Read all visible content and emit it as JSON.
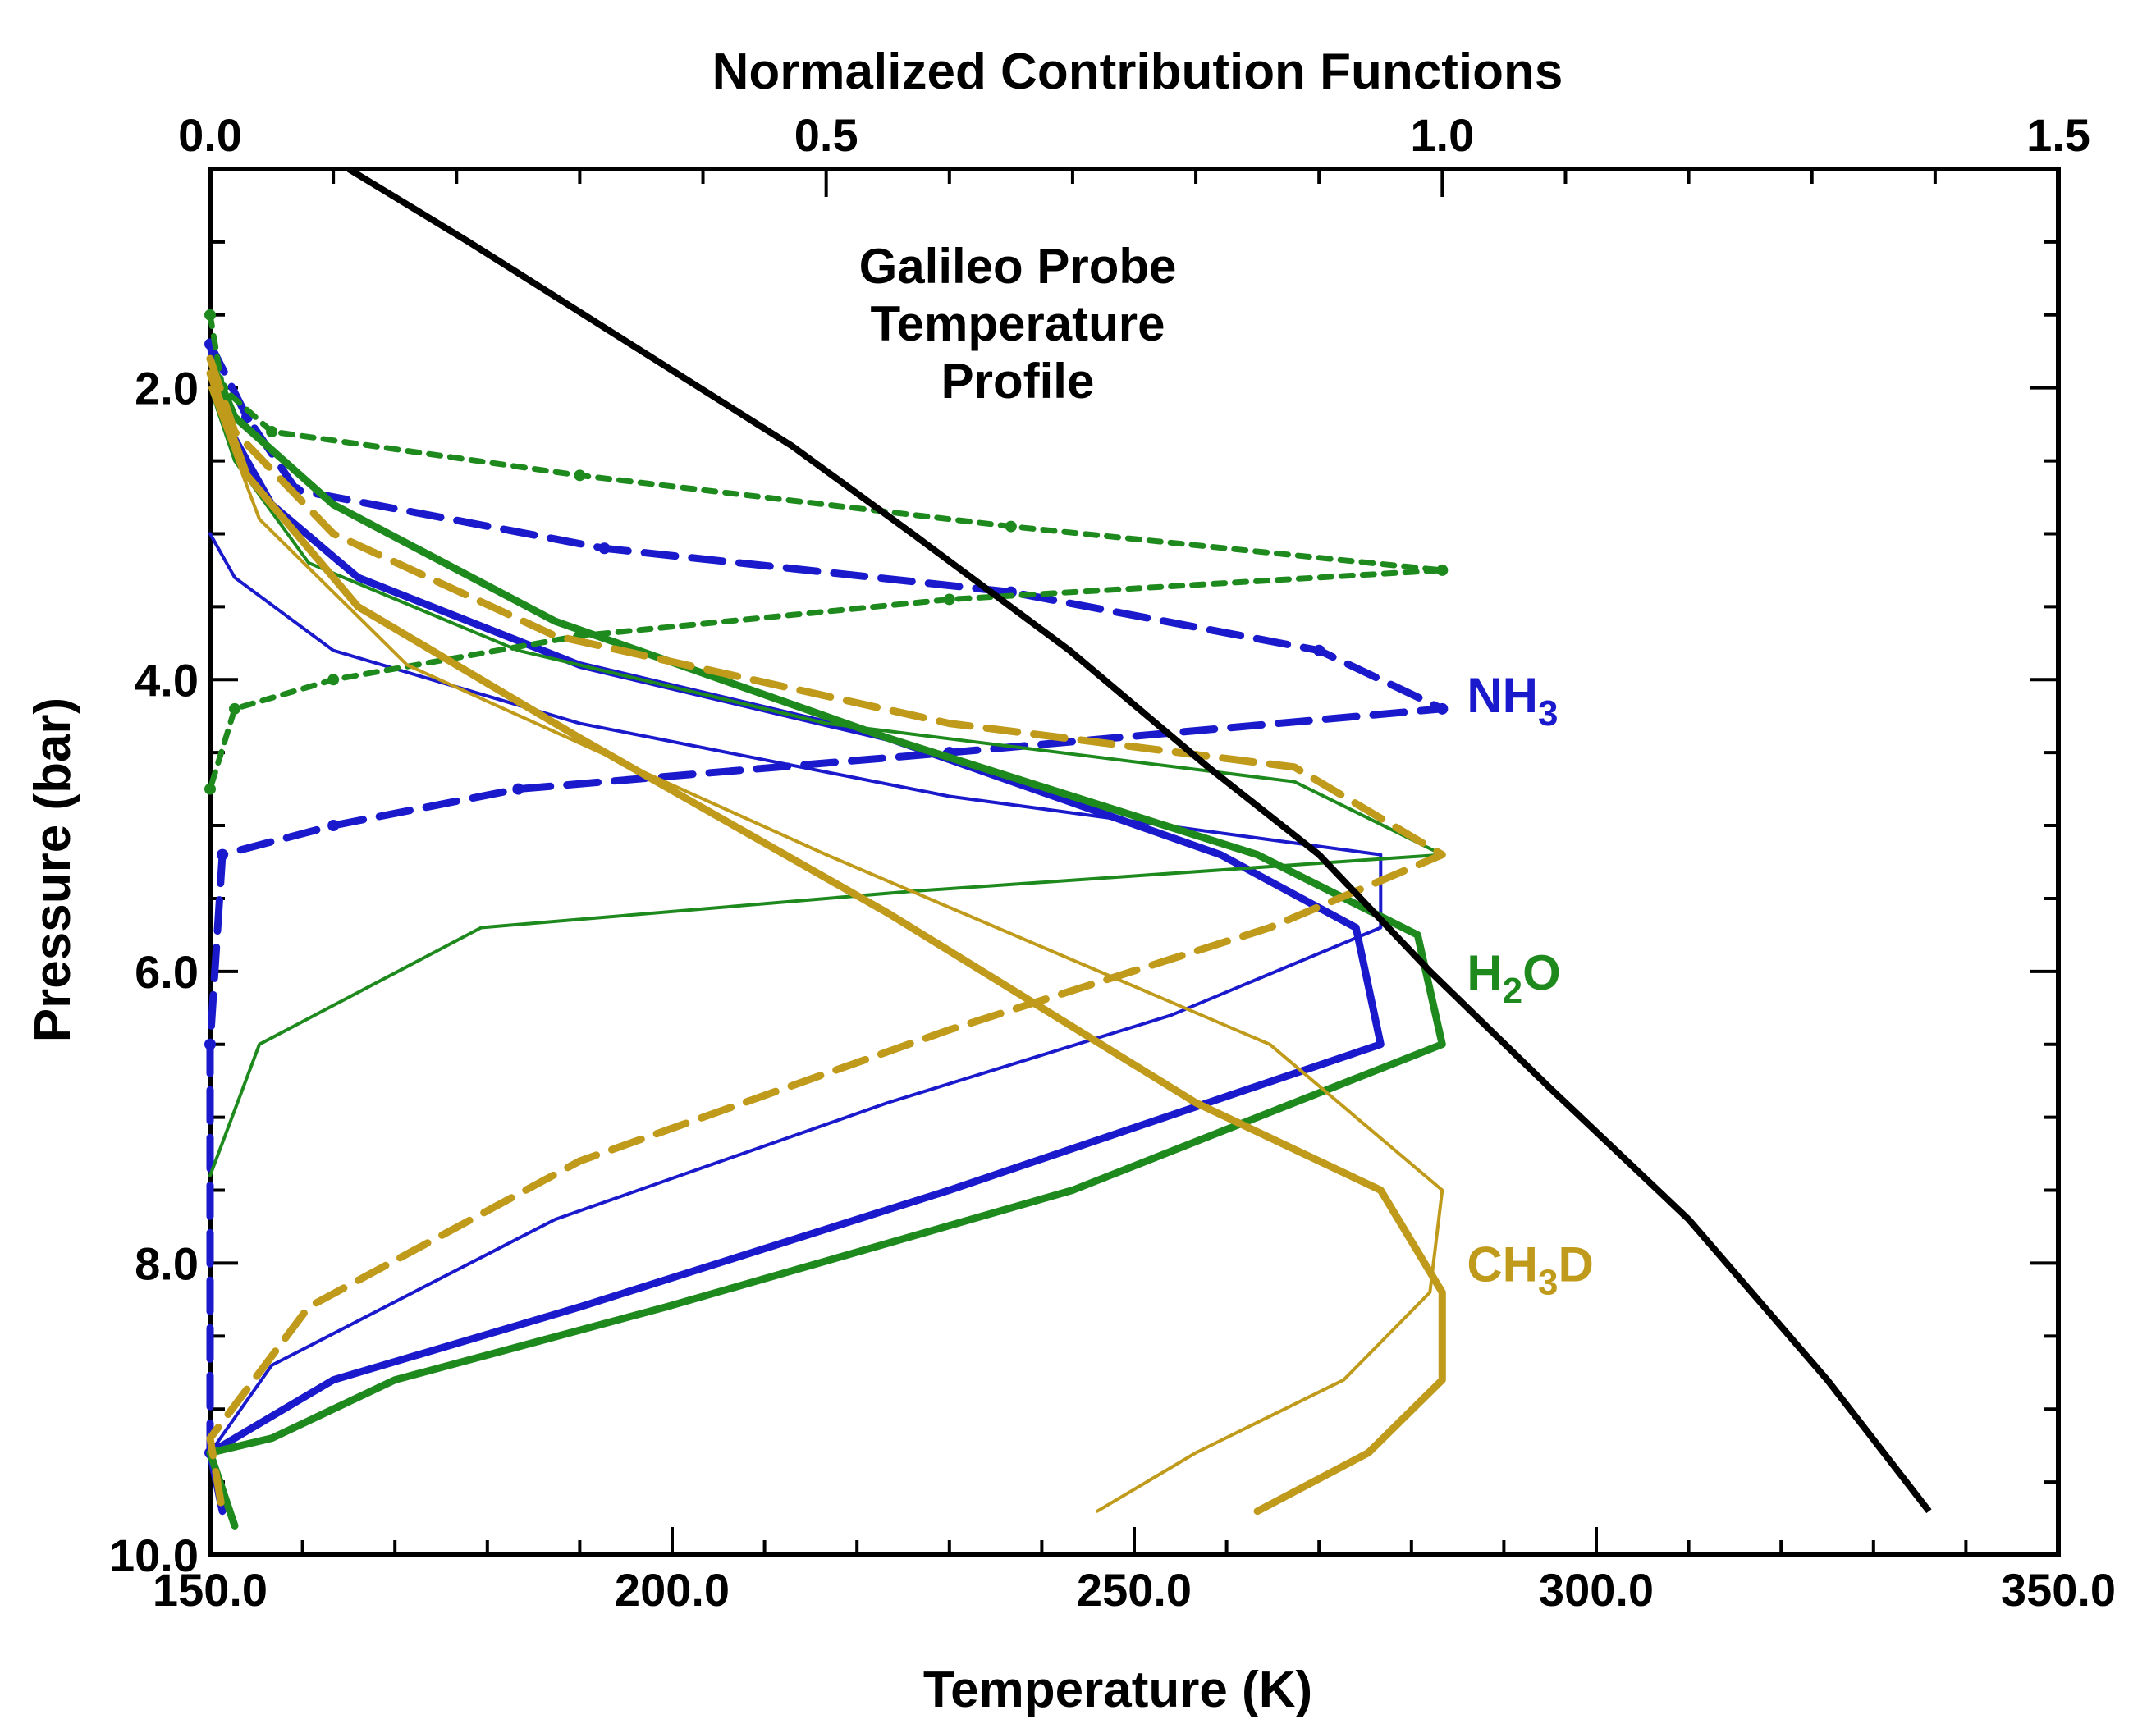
{
  "chart_data": {
    "type": "line",
    "title": "",
    "annotation": [
      "Galileo Probe",
      "Temperature",
      "Profile"
    ],
    "xlabel": "Temperature (K)",
    "x2label": "Normalized Contribution Functions",
    "ylabel": "Pressure (bar)",
    "xlim": [
      150,
      350
    ],
    "x2lim": [
      0,
      1.5
    ],
    "ylim": [
      10,
      0.5
    ],
    "x_ticks": [
      "150.0",
      "200.0",
      "250.0",
      "300.0",
      "350.0"
    ],
    "x2_ticks": [
      "0.0",
      "0.5",
      "1.0",
      "1.5"
    ],
    "y_ticks": [
      "2.0",
      "4.0",
      "6.0",
      "8.0",
      "10.0"
    ],
    "temperature_profile": {
      "name": "Galileo Probe Temperature Profile",
      "color": "#000000",
      "points": [
        [
          165,
          0.5
        ],
        [
          178,
          1.0
        ],
        [
          193,
          1.6
        ],
        [
          213,
          2.4
        ],
        [
          226,
          3.0
        ],
        [
          243,
          3.8
        ],
        [
          258,
          4.6
        ],
        [
          270,
          5.2
        ],
        [
          282,
          6.0
        ],
        [
          295,
          6.8
        ],
        [
          310,
          7.7
        ],
        [
          325,
          8.8
        ],
        [
          336,
          9.7
        ]
      ]
    },
    "series_labels": [
      {
        "text": "NH",
        "sub": "3",
        "color": "#1a1acc",
        "p": 4.1
      },
      {
        "text": "H",
        "sub": "2",
        "tail": "O",
        "color": "#1e8a1e",
        "p": 6.0
      },
      {
        "text": "CH",
        "sub": "3",
        "tail": "D",
        "color": "#c09a1a",
        "p": 8.0
      }
    ],
    "contribution_series": [
      {
        "name": "NH3 dashed",
        "color": "#1a1acc",
        "style": "dashed",
        "width": 9,
        "markers": true,
        "points": [
          [
            0.0,
            1.7
          ],
          [
            0.03,
            2.2
          ],
          [
            0.07,
            2.7
          ],
          [
            0.32,
            3.1
          ],
          [
            0.65,
            3.4
          ],
          [
            0.9,
            3.8
          ],
          [
            1.0,
            4.2
          ],
          [
            0.6,
            4.5
          ],
          [
            0.25,
            4.75
          ],
          [
            0.1,
            5.0
          ],
          [
            0.01,
            5.2
          ],
          [
            0.0,
            6.5
          ],
          [
            0.0,
            9.3
          ]
        ]
      },
      {
        "name": "NH3 thick",
        "color": "#1a1acc",
        "style": "solid",
        "width": 9,
        "points": [
          [
            0.0,
            1.7
          ],
          [
            0.01,
            2.2
          ],
          [
            0.05,
            2.8
          ],
          [
            0.12,
            3.3
          ],
          [
            0.3,
            3.9
          ],
          [
            0.55,
            4.4
          ],
          [
            0.82,
            5.2
          ],
          [
            0.93,
            5.7
          ],
          [
            0.95,
            6.5
          ],
          [
            0.6,
            7.5
          ],
          [
            0.3,
            8.3
          ],
          [
            0.1,
            8.8
          ],
          [
            0.0,
            9.3
          ],
          [
            0.01,
            9.7
          ]
        ]
      },
      {
        "name": "NH3 thin",
        "color": "#1a1acc",
        "style": "solid",
        "width": 4,
        "points": [
          [
            0.0,
            3.0
          ],
          [
            0.02,
            3.3
          ],
          [
            0.1,
            3.8
          ],
          [
            0.3,
            4.3
          ],
          [
            0.6,
            4.8
          ],
          [
            0.95,
            5.2
          ],
          [
            0.95,
            5.7
          ],
          [
            0.78,
            6.3
          ],
          [
            0.55,
            6.9
          ],
          [
            0.28,
            7.7
          ],
          [
            0.05,
            8.7
          ],
          [
            0.0,
            9.3
          ]
        ]
      },
      {
        "name": "H2O dotted",
        "color": "#1e8a1e",
        "style": "dotted",
        "width": 7,
        "markers": true,
        "points": [
          [
            0.0,
            1.5
          ],
          [
            0.01,
            2.0
          ],
          [
            0.05,
            2.3
          ],
          [
            0.3,
            2.6
          ],
          [
            0.65,
            2.95
          ],
          [
            1.0,
            3.25
          ],
          [
            0.6,
            3.45
          ],
          [
            0.3,
            3.7
          ],
          [
            0.1,
            4.0
          ],
          [
            0.02,
            4.2
          ],
          [
            0.0,
            4.75
          ]
        ]
      },
      {
        "name": "H2O thick",
        "color": "#1e8a1e",
        "style": "solid",
        "width": 9,
        "points": [
          [
            0.0,
            1.8
          ],
          [
            0.02,
            2.2
          ],
          [
            0.1,
            2.8
          ],
          [
            0.28,
            3.6
          ],
          [
            0.55,
            4.4
          ],
          [
            0.85,
            5.2
          ],
          [
            0.98,
            5.75
          ],
          [
            1.0,
            6.5
          ],
          [
            0.7,
            7.5
          ],
          [
            0.37,
            8.3
          ],
          [
            0.15,
            8.8
          ],
          [
            0.05,
            9.2
          ],
          [
            0.0,
            9.3
          ],
          [
            0.02,
            9.8
          ]
        ]
      },
      {
        "name": "H2O thin",
        "color": "#1e8a1e",
        "style": "solid",
        "width": 4,
        "points": [
          [
            0.0,
            2.0
          ],
          [
            0.02,
            2.5
          ],
          [
            0.08,
            3.2
          ],
          [
            0.25,
            3.8
          ],
          [
            0.5,
            4.3
          ],
          [
            0.88,
            4.7
          ],
          [
            1.0,
            5.2
          ],
          [
            0.57,
            5.45
          ],
          [
            0.22,
            5.7
          ],
          [
            0.04,
            6.5
          ],
          [
            0.0,
            7.4
          ]
        ]
      },
      {
        "name": "CH3D dashed",
        "color": "#c09a1a",
        "style": "dashed",
        "width": 9,
        "points": [
          [
            0.0,
            1.8
          ],
          [
            0.02,
            2.3
          ],
          [
            0.1,
            3.0
          ],
          [
            0.28,
            3.7
          ],
          [
            0.6,
            4.3
          ],
          [
            0.88,
            4.6
          ],
          [
            1.0,
            5.2
          ],
          [
            0.86,
            5.7
          ],
          [
            0.6,
            6.4
          ],
          [
            0.3,
            7.3
          ],
          [
            0.08,
            8.3
          ],
          [
            0.0,
            9.2
          ],
          [
            0.01,
            9.7
          ]
        ]
      },
      {
        "name": "CH3D thick",
        "color": "#c09a1a",
        "style": "solid",
        "width": 9,
        "points": [
          [
            0.0,
            1.9
          ],
          [
            0.03,
            2.6
          ],
          [
            0.12,
            3.5
          ],
          [
            0.3,
            4.4
          ],
          [
            0.55,
            5.6
          ],
          [
            0.8,
            6.9
          ],
          [
            0.95,
            7.5
          ],
          [
            1.0,
            8.2
          ],
          [
            1.0,
            8.8
          ],
          [
            0.94,
            9.3
          ],
          [
            0.85,
            9.7
          ]
        ]
      },
      {
        "name": "CH3D thin",
        "color": "#c09a1a",
        "style": "solid",
        "width": 4,
        "points": [
          [
            0.0,
            2.0
          ],
          [
            0.04,
            2.9
          ],
          [
            0.16,
            3.9
          ],
          [
            0.5,
            5.2
          ],
          [
            0.86,
            6.5
          ],
          [
            1.0,
            7.5
          ],
          [
            0.99,
            8.2
          ],
          [
            0.92,
            8.8
          ],
          [
            0.8,
            9.3
          ],
          [
            0.72,
            9.7
          ]
        ]
      }
    ]
  }
}
